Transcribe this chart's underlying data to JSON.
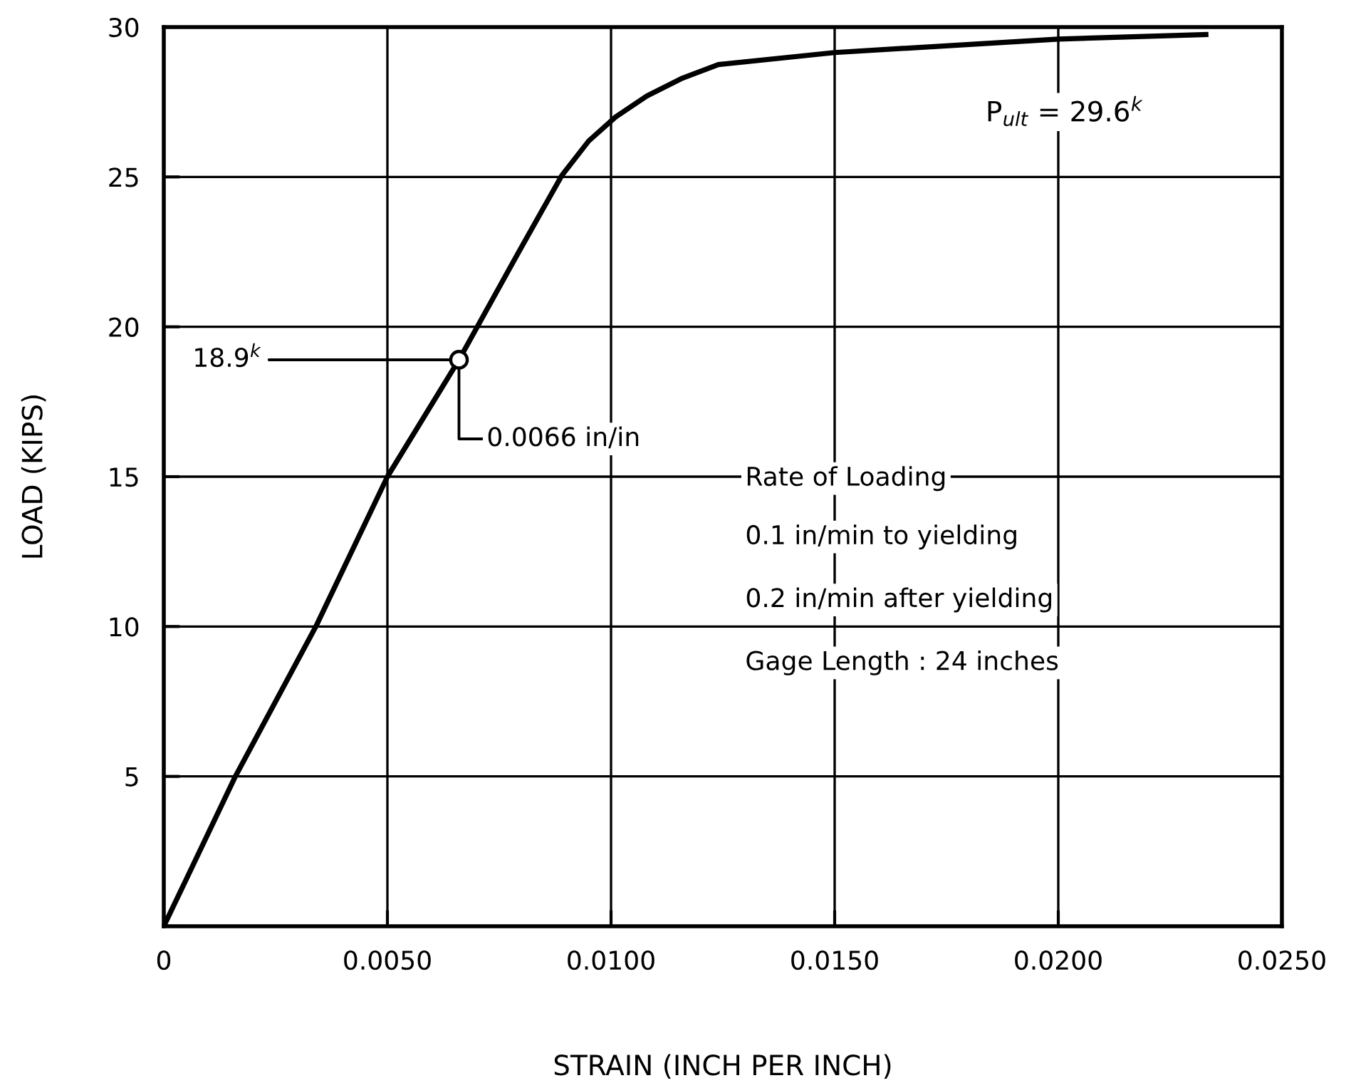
{
  "chart_data": {
    "type": "line",
    "xlabel": "STRAIN (INCH PER INCH)",
    "ylabel": "LOAD (KIPS)",
    "x": [
      0,
      0.0016,
      0.0034,
      0.005,
      0.0066,
      0.0079,
      0.0089,
      0.0095,
      0.0101,
      0.0108,
      0.0116,
      0.0124,
      0.015,
      0.02,
      0.0233
    ],
    "series": [
      {
        "color": "#000000",
        "values": [
          0,
          5,
          10,
          15,
          18.9,
          22.4,
          25.05,
          26.2,
          27.0,
          27.7,
          28.3,
          28.75,
          29.15,
          29.6,
          29.75
        ]
      },
      {
        "type": "scatter",
        "x": [
          0.0066
        ],
        "color": "#000000",
        "marker": "circle",
        "values": [
          18.9
        ]
      }
    ],
    "xlim": [
      0,
      0.025
    ],
    "xticks": [
      0,
      {
        "value": 0.005,
        "label": "0.0050"
      },
      {
        "value": 0.01,
        "label": "0.0100"
      },
      {
        "value": 0.015,
        "label": "0.0150"
      },
      {
        "value": 0.02,
        "label": "0.0200"
      },
      {
        "value": 0.025,
        "label": "0.0250"
      }
    ],
    "ylim": [
      0,
      30
    ],
    "yticks": [
      {
        "value": 0,
        "label": null
      },
      5,
      10,
      15,
      20,
      25,
      30
    ],
    "grid": true,
    "annotations": [
      {
        "text": "18.9$^{k}$",
        "x": 0.0066,
        "y": 18.9
      },
      {
        "text": "0.0066 in/in",
        "x": 0.0066,
        "y": 18.9
      },
      "P$_{ult}$ = 29.6$^{k}$",
      "Rate of Loading",
      "0.1 in/min to yielding",
      "0.2 in/min after yielding",
      "Gage Length : 24 inches"
    ]
  }
}
